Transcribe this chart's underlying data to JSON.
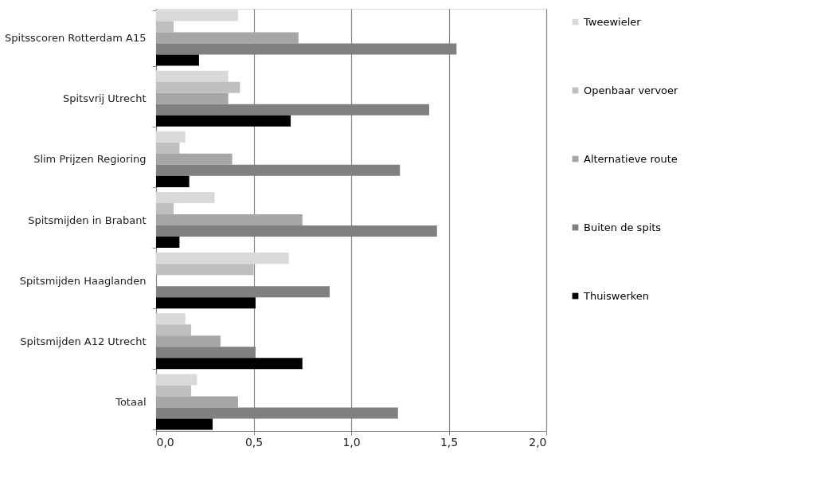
{
  "chart_data": {
    "type": "bar",
    "orientation": "horizontal",
    "categories": [
      "Spitsscoren Rotterdam A15",
      "Spitsvrij Utrecht",
      "Slim Prijzen Regioring",
      "Spitsmijden in Brabant",
      "Spitsmijden Haaglanden",
      "Spitsmijden A12 Utrecht",
      "Totaal"
    ],
    "series": [
      {
        "name": "Tweewieler",
        "color": "#d9d9d9",
        "values": [
          0.42,
          0.37,
          0.15,
          0.3,
          0.68,
          0.15,
          0.21
        ]
      },
      {
        "name": "Openbaar vervoer",
        "color": "#bfbfbf",
        "values": [
          0.09,
          0.43,
          0.12,
          0.09,
          0.5,
          0.18,
          0.18
        ]
      },
      {
        "name": "Alternatieve route",
        "color": "#a6a6a6",
        "values": [
          0.73,
          0.37,
          0.39,
          0.75,
          null,
          0.33,
          0.42
        ]
      },
      {
        "name": "Buiten de spits",
        "color": "#808080",
        "values": [
          1.54,
          1.4,
          1.25,
          1.44,
          0.89,
          0.51,
          1.24
        ]
      },
      {
        "name": "Thuiswerken",
        "color": "#000000",
        "values": [
          0.22,
          0.69,
          0.17,
          0.12,
          0.51,
          0.75,
          0.29
        ]
      }
    ],
    "xlim": [
      0,
      2.0
    ],
    "xticks": [
      {
        "value": 0,
        "label": "0,0"
      },
      {
        "value": 0.5,
        "label": "0,5"
      },
      {
        "value": 1.0,
        "label": "1,0"
      },
      {
        "value": 1.5,
        "label": "1,5"
      },
      {
        "value": 2.0,
        "label": "2,0"
      }
    ],
    "grid": "x",
    "legend": "right"
  }
}
